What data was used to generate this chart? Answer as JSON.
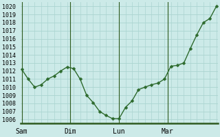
{
  "x_values": [
    0,
    0.5,
    1,
    1.5,
    2,
    2.5,
    3,
    3.5,
    4,
    4.5,
    5,
    5.5,
    6,
    6.5,
    7,
    7.5,
    8,
    8.5,
    9,
    9.5,
    10,
    10.5,
    11,
    11.5,
    12,
    12.5,
    13,
    13.5,
    14,
    14.5,
    15
  ],
  "y_values": [
    1012.2,
    1011.0,
    1010.0,
    1010.3,
    1011.0,
    1011.4,
    1012.0,
    1012.5,
    1012.3,
    1011.0,
    1009.0,
    1008.1,
    1007.0,
    1006.5,
    1006.1,
    1006.1,
    1007.5,
    1008.3,
    1009.7,
    1010.0,
    1010.3,
    1010.5,
    1011.0,
    1012.6,
    1012.7,
    1013.0,
    1014.8,
    1016.5,
    1018.0,
    1018.5,
    1020.0
  ],
  "yticks": [
    1006,
    1007,
    1008,
    1009,
    1010,
    1011,
    1012,
    1013,
    1014,
    1015,
    1016,
    1017,
    1018,
    1019,
    1020
  ],
  "ylim": [
    1005.5,
    1020.5
  ],
  "xlim": [
    -0.1,
    15.1
  ],
  "xtick_positions": [
    0.0,
    3.75,
    7.5,
    11.25
  ],
  "xtick_labels": [
    "Sam",
    "Dim",
    "Lun",
    "Mar"
  ],
  "vline_positions": [
    0.0,
    3.75,
    7.5,
    11.25
  ],
  "minor_grid_x_step": 0.5,
  "line_color": "#2d6a2d",
  "marker_color": "#2d6a2d",
  "bg_color": "#cceae8",
  "grid_color": "#aad4d0",
  "axis_bottom_color": "#2d5a1e",
  "ytick_fontsize": 6.0,
  "xtick_fontsize": 7.0,
  "marker_size": 2.5,
  "line_width": 1.0
}
